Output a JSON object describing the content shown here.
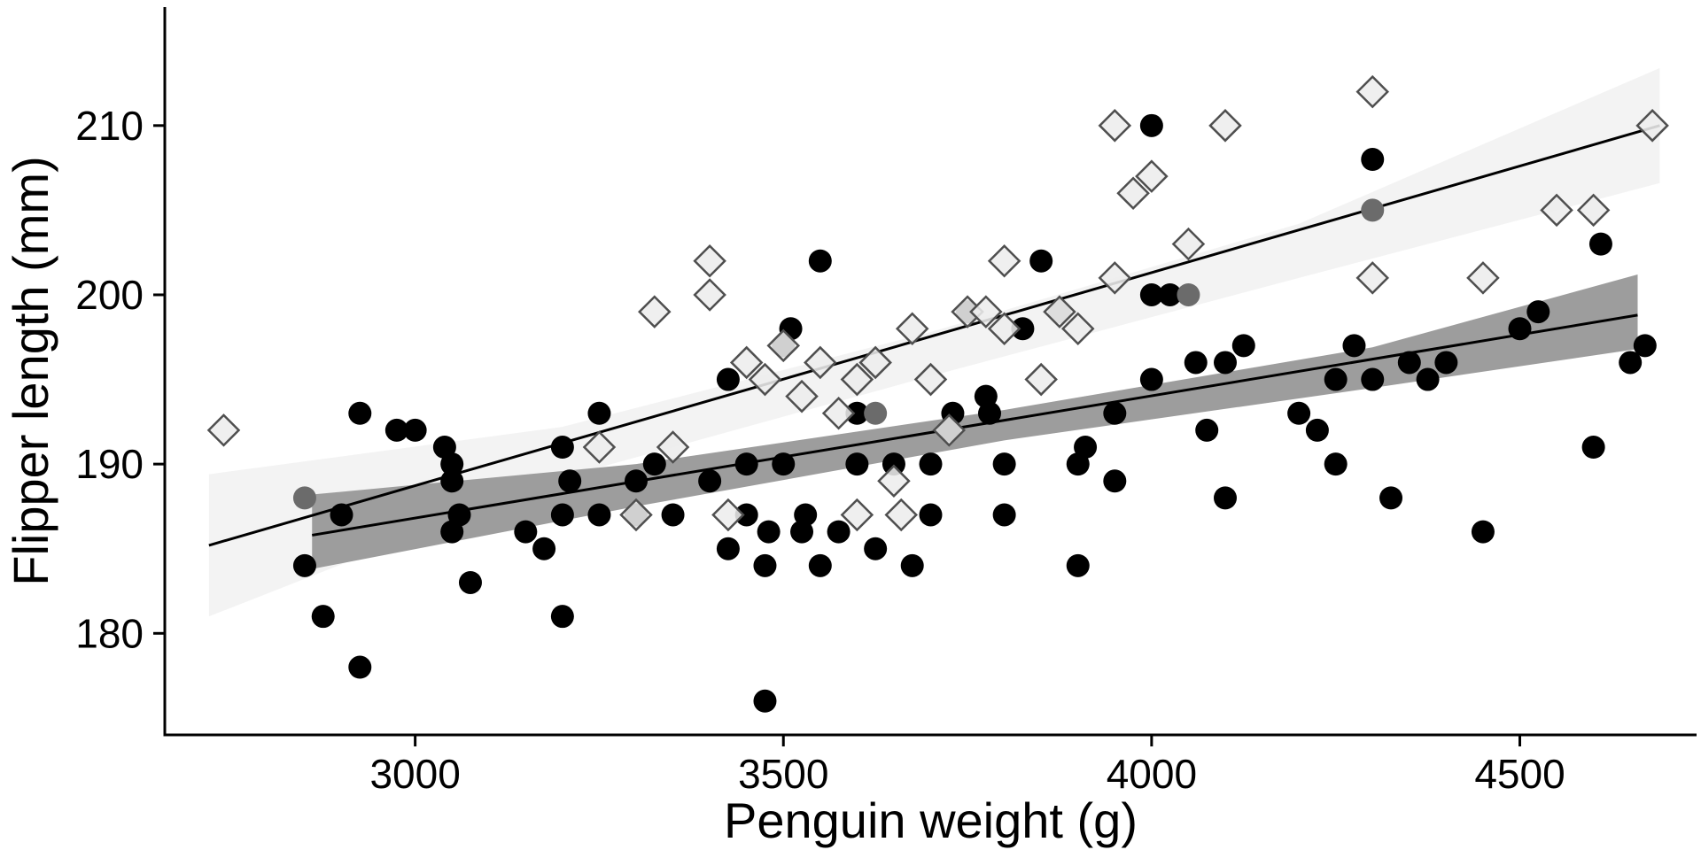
{
  "colors": {
    "background": "#ffffff",
    "axis": "#000000",
    "line": "#000000",
    "ribbon_upper": "#f3f3f3",
    "ribbon_lower": "#9d9d9d",
    "circle_fill": "#000000",
    "circle_faded_fill": "#6b6b6b",
    "diamond_fill": "#ededed",
    "diamond_stroke": "#4f4f4f"
  },
  "chart_data": {
    "type": "scatter",
    "title": "",
    "xlabel": "Penguin weight (g)",
    "ylabel": "Flipper length (mm)",
    "xlim": [
      2660,
      4740
    ],
    "ylim": [
      174,
      217
    ],
    "grid": false,
    "legend": "none",
    "x_ticks": [
      {
        "value": 3000,
        "label": "3000"
      },
      {
        "value": 3500,
        "label": "3500"
      },
      {
        "value": 4000,
        "label": "4000"
      },
      {
        "value": 4500,
        "label": "4500"
      }
    ],
    "y_ticks": [
      {
        "value": 180,
        "label": "180"
      },
      {
        "value": 190,
        "label": "190"
      },
      {
        "value": 200,
        "label": "200"
      },
      {
        "value": 210,
        "label": "210"
      }
    ],
    "series": [
      {
        "name": "filled-circles",
        "marker": "circle",
        "color_key": "circle_fill",
        "points": [
          [
            2850,
            184
          ],
          [
            2875,
            181
          ],
          [
            2925,
            178
          ],
          [
            2900,
            187
          ],
          [
            2925,
            193
          ],
          [
            2975,
            192
          ],
          [
            3000,
            192
          ],
          [
            3040,
            191
          ],
          [
            3050,
            190
          ],
          [
            3050,
            189
          ],
          [
            3060,
            187
          ],
          [
            3050,
            186
          ],
          [
            3075,
            183
          ],
          [
            3150,
            186
          ],
          [
            3175,
            185
          ],
          [
            3200,
            181
          ],
          [
            3200,
            187
          ],
          [
            3210,
            189
          ],
          [
            3200,
            191
          ],
          [
            3250,
            193
          ],
          [
            3250,
            187
          ],
          [
            3300,
            187
          ],
          [
            3300,
            189
          ],
          [
            3325,
            190
          ],
          [
            3350,
            187
          ],
          [
            3400,
            189
          ],
          [
            3425,
            195
          ],
          [
            3425,
            185
          ],
          [
            3450,
            187
          ],
          [
            3450,
            190
          ],
          [
            3475,
            184
          ],
          [
            3480,
            186
          ],
          [
            3475,
            176
          ],
          [
            3500,
            190
          ],
          [
            3500,
            197
          ],
          [
            3510,
            198
          ],
          [
            3525,
            186
          ],
          [
            3530,
            187
          ],
          [
            3550,
            202
          ],
          [
            3550,
            184
          ],
          [
            3575,
            186
          ],
          [
            3600,
            190
          ],
          [
            3600,
            193
          ],
          [
            3625,
            185
          ],
          [
            3650,
            190
          ],
          [
            3675,
            184
          ],
          [
            3700,
            187
          ],
          [
            3700,
            190
          ],
          [
            3725,
            192
          ],
          [
            3730,
            193
          ],
          [
            3750,
            199
          ],
          [
            3775,
            194
          ],
          [
            3780,
            193
          ],
          [
            3800,
            187
          ],
          [
            3800,
            190
          ],
          [
            3825,
            198
          ],
          [
            3850,
            202
          ],
          [
            3900,
            184
          ],
          [
            3900,
            190
          ],
          [
            3910,
            191
          ],
          [
            3950,
            189
          ],
          [
            3950,
            193
          ],
          [
            4000,
            210
          ],
          [
            4000,
            200
          ],
          [
            4000,
            195
          ],
          [
            4025,
            200
          ],
          [
            4060,
            196
          ],
          [
            4075,
            192
          ],
          [
            4100,
            188
          ],
          [
            4100,
            196
          ],
          [
            4125,
            197
          ],
          [
            4200,
            193
          ],
          [
            4225,
            192
          ],
          [
            4250,
            195
          ],
          [
            4250,
            190
          ],
          [
            4275,
            197
          ],
          [
            4300,
            208
          ],
          [
            4300,
            195
          ],
          [
            4325,
            188
          ],
          [
            4350,
            196
          ],
          [
            4375,
            195
          ],
          [
            4400,
            196
          ],
          [
            4450,
            186
          ],
          [
            4500,
            198
          ],
          [
            4525,
            199
          ],
          [
            4600,
            191
          ],
          [
            4610,
            203
          ],
          [
            4650,
            196
          ],
          [
            4670,
            197
          ]
        ]
      },
      {
        "name": "faded-circles",
        "marker": "circle",
        "color_key": "circle_faded_fill",
        "points": [
          [
            2850,
            188
          ],
          [
            3625,
            193
          ],
          [
            3875,
            199
          ],
          [
            4050,
            200
          ],
          [
            4300,
            205
          ]
        ]
      },
      {
        "name": "open-diamonds",
        "marker": "diamond",
        "color_key": "diamond_fill",
        "stroke_key": "diamond_stroke",
        "points": [
          [
            2740,
            192
          ],
          [
            3250,
            191
          ],
          [
            3300,
            187
          ],
          [
            3325,
            199
          ],
          [
            3350,
            191
          ],
          [
            3400,
            202
          ],
          [
            3400,
            200
          ],
          [
            3425,
            187
          ],
          [
            3450,
            196
          ],
          [
            3475,
            195
          ],
          [
            3500,
            197
          ],
          [
            3525,
            194
          ],
          [
            3550,
            196
          ],
          [
            3575,
            193
          ],
          [
            3600,
            195
          ],
          [
            3600,
            187
          ],
          [
            3625,
            196
          ],
          [
            3650,
            189
          ],
          [
            3660,
            187
          ],
          [
            3675,
            198
          ],
          [
            3700,
            195
          ],
          [
            3725,
            192
          ],
          [
            3750,
            199
          ],
          [
            3775,
            199
          ],
          [
            3800,
            202
          ],
          [
            3800,
            198
          ],
          [
            3850,
            195
          ],
          [
            3875,
            199
          ],
          [
            3900,
            198
          ],
          [
            3950,
            201
          ],
          [
            3950,
            210
          ],
          [
            3975,
            206
          ],
          [
            4000,
            207
          ],
          [
            4050,
            203
          ],
          [
            4100,
            210
          ],
          [
            4300,
            212
          ],
          [
            4300,
            201
          ],
          [
            4450,
            201
          ],
          [
            4550,
            205
          ],
          [
            4600,
            205
          ],
          [
            4680,
            210
          ]
        ]
      }
    ],
    "regression_lines": [
      {
        "name": "diamonds-trend-line",
        "x1": 2720,
        "y1": 185.2,
        "x2": 4690,
        "y2": 210.0
      },
      {
        "name": "circles-trend-line",
        "x1": 2860,
        "y1": 185.8,
        "x2": 4660,
        "y2": 198.8
      }
    ],
    "ribbons": [
      {
        "name": "diamonds-confidence-band",
        "color_key": "ribbon_upper",
        "points": [
          {
            "x": 2720,
            "lo": 181.0,
            "hi": 189.4
          },
          {
            "x": 3200,
            "lo": 189.2,
            "hi": 192.2
          },
          {
            "x": 3700,
            "lo": 195.2,
            "hi": 197.8
          },
          {
            "x": 4200,
            "lo": 201.0,
            "hi": 204.2
          },
          {
            "x": 4690,
            "lo": 206.6,
            "hi": 213.4
          }
        ]
      },
      {
        "name": "circles-confidence-band",
        "color_key": "ribbon_lower",
        "points": [
          {
            "x": 2860,
            "lo": 183.8,
            "hi": 188.2
          },
          {
            "x": 3300,
            "lo": 187.5,
            "hi": 190.0
          },
          {
            "x": 3800,
            "lo": 191.4,
            "hi": 193.2
          },
          {
            "x": 4300,
            "lo": 194.5,
            "hi": 196.9
          },
          {
            "x": 4660,
            "lo": 196.8,
            "hi": 201.2
          }
        ]
      }
    ]
  }
}
